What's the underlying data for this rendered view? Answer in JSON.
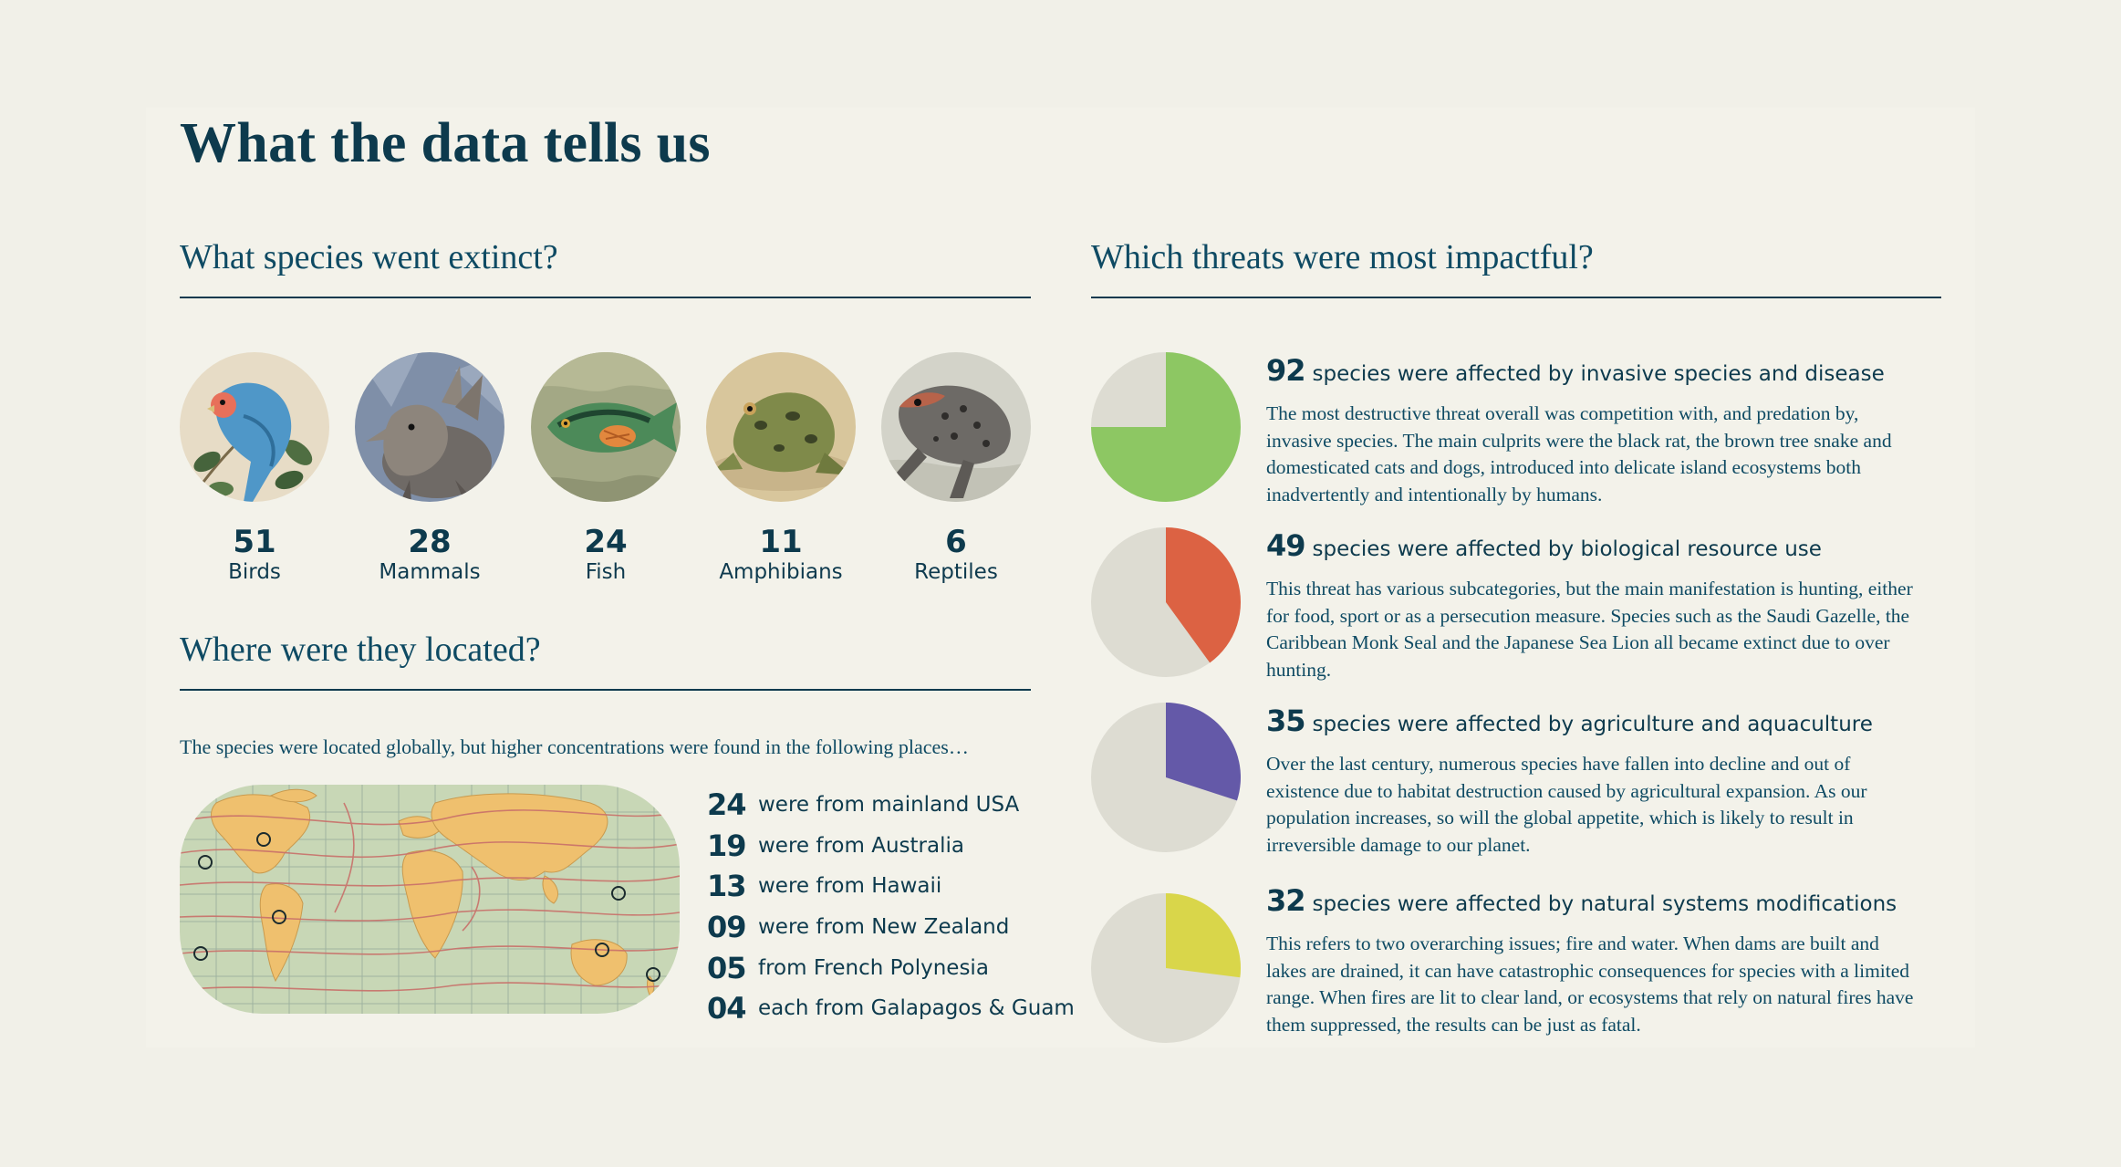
{
  "title": "What the data tells us",
  "species_section": {
    "title": "What species went extinct?",
    "items": [
      {
        "count": "51",
        "label": "Birds",
        "icon": "bird-illustration"
      },
      {
        "count": "28",
        "label": "Mammals",
        "icon": "mammal-illustration"
      },
      {
        "count": "24",
        "label": "Fish",
        "icon": "fish-illustration"
      },
      {
        "count": "11",
        "label": "Amphibians",
        "icon": "frog-illustration"
      },
      {
        "count": "6",
        "label": "Reptiles",
        "icon": "lizard-illustration"
      }
    ]
  },
  "location_section": {
    "title": "Where were they located?",
    "intro": "The species were located globally, but higher concentrations were found in the following places…",
    "items": [
      {
        "count": "24",
        "text": "were from mainland USA"
      },
      {
        "count": "19",
        "text": "were from Australia"
      },
      {
        "count": "13",
        "text": "were from Hawaii"
      },
      {
        "count": "09",
        "text": "were from New Zealand"
      },
      {
        "count": "05",
        "text": "from French Polynesia"
      },
      {
        "count": "04",
        "text": "each from Galapagos & Guam"
      }
    ]
  },
  "threats_section": {
    "title": "Which threats were most impactful?",
    "items": [
      {
        "count": "92",
        "title": "species were affected by invasive species and disease",
        "description": "The most destructive threat overall was competition with, and predation by, invasive species. The main culprits were the black rat, the brown tree snake and domesticated cats and dogs, introduced into delicate island ecosystems both inadvertently and intentionally by humans.",
        "share": 0.75,
        "color": "#8dc763"
      },
      {
        "count": "49",
        "title": "species were affected by biological resource use",
        "description": "This threat has various subcategories, but the main manifestation is hunting, either for food, sport or as a persecution measure. Species such as the Saudi Gazelle, the Caribbean Monk Seal and the Japanese Sea Lion all became extinct due to over hunting.",
        "share": 0.4,
        "color": "#dc6243"
      },
      {
        "count": "35",
        "title": "species were affected by agriculture and aquaculture",
        "description": "Over the last century, numerous species have fallen into decline and out of existence due to habitat destruction caused by agricultural expansion. As our population increases, so will the global appetite, which is likely to result in irreversible damage to our planet.",
        "share": 0.3,
        "color": "#6459a8"
      },
      {
        "count": "32",
        "title": "species were affected by natural systems modifications",
        "description": "This refers to two overarching issues; fire and water. When dams are built and lakes are drained, it can have catastrophic consequences for species with a limited range. When fires are lit to clear land, or ecosystems that rely on natural fires have them suppressed, the results can be just as fatal.",
        "share": 0.27,
        "color": "#d9d64a"
      }
    ],
    "pie_background": "#dddcd2"
  }
}
